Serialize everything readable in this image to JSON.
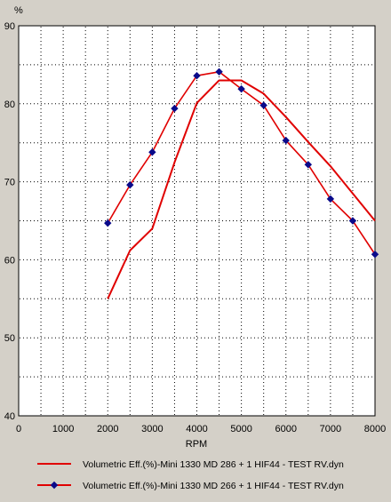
{
  "chart_data": {
    "type": "line",
    "title": "",
    "xlabel": "RPM",
    "ylabel": "%",
    "xlim": [
      0,
      8000
    ],
    "ylim": [
      40,
      90
    ],
    "xticks": [
      0,
      1000,
      2000,
      3000,
      4000,
      5000,
      6000,
      7000,
      8000
    ],
    "yticks": [
      40,
      50,
      60,
      70,
      80,
      90
    ],
    "grid": true,
    "legend_position": "bottom",
    "series": [
      {
        "name": "Volumetric Eff.(%)-Mini 1330  MD 286 + 1 HIF44 - TEST RV.dyn",
        "color": "#e00000",
        "marker": "none",
        "x": [
          2000,
          2500,
          3000,
          3500,
          4000,
          4500,
          5000,
          5500,
          6000,
          6500,
          7000,
          7500,
          8000
        ],
        "y": [
          55.0,
          61.2,
          64.0,
          72.5,
          80.1,
          83.0,
          83.0,
          81.3,
          78.3,
          75.1,
          72.0,
          68.5,
          65.0
        ]
      },
      {
        "name": "Volumetric Eff.(%)-Mini 1330  MD 266 + 1 HIF44 - TEST RV.dyn",
        "color": "#e00000",
        "marker": "diamond",
        "marker_color": "#0a0a8a",
        "x": [
          2000,
          2500,
          3000,
          3500,
          4000,
          4500,
          5000,
          5500,
          6000,
          6500,
          7000,
          7500,
          8000
        ],
        "y": [
          64.7,
          69.6,
          73.8,
          79.4,
          83.6,
          84.1,
          81.9,
          79.8,
          75.3,
          72.2,
          67.8,
          65.0,
          60.7
        ]
      }
    ]
  }
}
